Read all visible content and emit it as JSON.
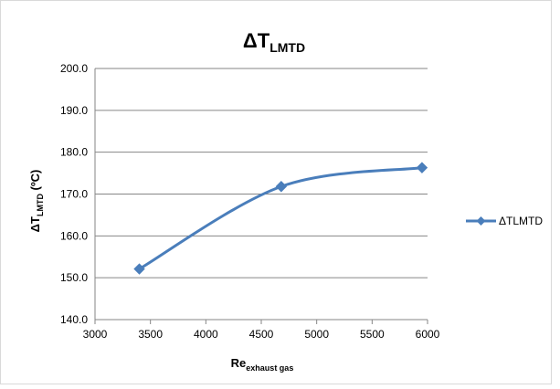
{
  "chart_data": {
    "type": "line",
    "title": {
      "main": "ΔT",
      "sub": "LMTD"
    },
    "xlabel": {
      "main": "Re",
      "sub": "exhaust gas"
    },
    "ylabel": {
      "main": "ΔT",
      "sub": "LMTD",
      "unit": " (ºC)"
    },
    "xlim": [
      3000,
      6000
    ],
    "ylim": [
      140,
      200
    ],
    "xticks": [
      3000,
      3500,
      4000,
      4500,
      5000,
      5500,
      6000
    ],
    "yticks": [
      140.0,
      150.0,
      160.0,
      170.0,
      180.0,
      190.0,
      200.0
    ],
    "ytick_labels": [
      "140.0",
      "150.0",
      "160.0",
      "170.0",
      "180.0",
      "190.0",
      "200.0"
    ],
    "grid": "horizontal",
    "legend_position": "right",
    "series": [
      {
        "name": "ΔTLMTD",
        "color": "#4a7ebb",
        "marker": "diamond",
        "smooth": true,
        "x": [
          3400,
          4680,
          5950
        ],
        "y": [
          152.1,
          171.8,
          176.3
        ]
      }
    ]
  }
}
